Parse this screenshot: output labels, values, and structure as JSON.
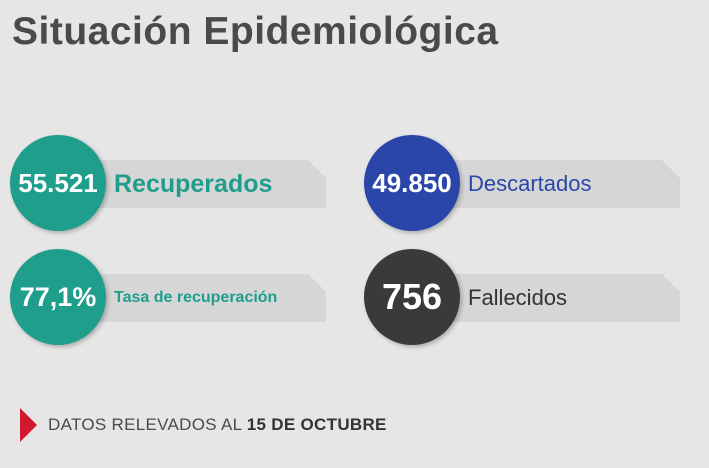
{
  "title": "Situación Epidemiológica",
  "stats": [
    {
      "value": "55.521",
      "label": "Recuperados",
      "color": "#1f9e8c"
    },
    {
      "value": "49.850",
      "label": "Descartados",
      "color": "#2a46a8"
    },
    {
      "value": "77,1%",
      "label": "Tasa de recuperación",
      "color": "#1f9e8c"
    },
    {
      "value": "756",
      "label": "Fallecidos",
      "color": "#3a3a3c"
    }
  ],
  "footer": {
    "prefix": "DATOS RELEVADOS AL ",
    "date": "15 DE OCTUBRE",
    "marker_color": "#d0192c"
  }
}
